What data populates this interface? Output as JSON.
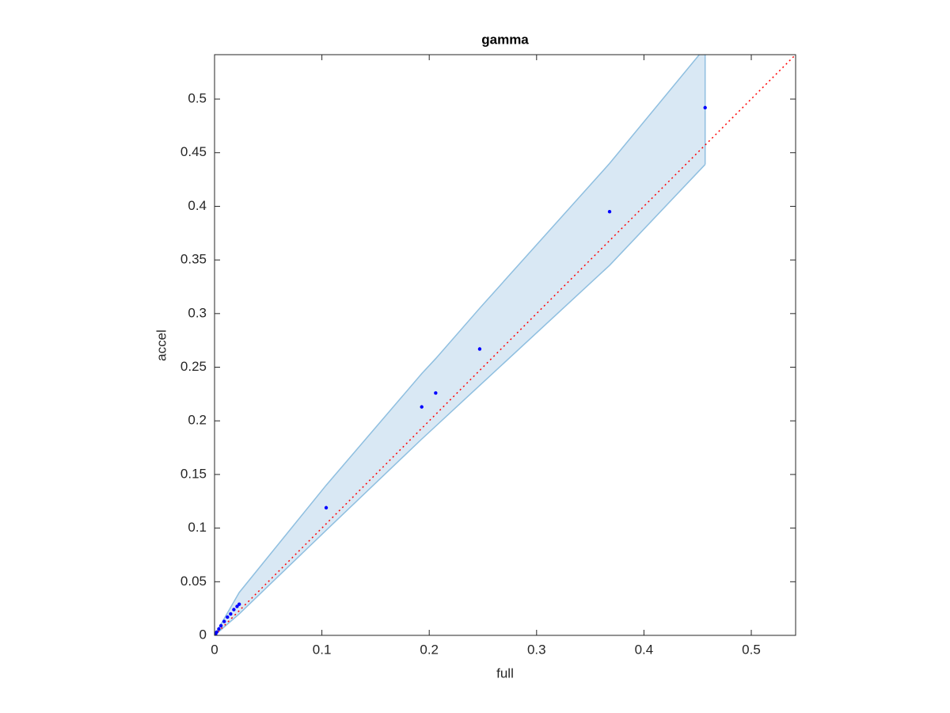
{
  "chart_data": {
    "type": "scatter",
    "title": "gamma",
    "x_label": "full",
    "y_label": "accel",
    "xlim": [
      0,
      0.5413
    ],
    "ylim": [
      0,
      0.5414
    ],
    "xticks": [
      0,
      0.1,
      0.2,
      0.3,
      0.4,
      0.5
    ],
    "yticks": [
      0,
      0.05,
      0.1,
      0.15,
      0.2,
      0.25,
      0.3,
      0.35,
      0.4,
      0.45,
      0.5
    ],
    "grid": false,
    "series": [
      {
        "color": "#0000ff",
        "x": [
          0.001,
          0.002,
          0.004,
          0.006,
          0.009,
          0.012,
          0.015,
          0.018,
          0.021,
          0.023,
          0.104,
          0.193,
          0.206,
          0.247,
          0.368,
          0.457
        ],
        "values": [
          0.001,
          0.003,
          0.006,
          0.009,
          0.013,
          0.017,
          0.02,
          0.024,
          0.027,
          0.029,
          0.119,
          0.213,
          0.226,
          0.267,
          0.395,
          0.492
        ]
      }
    ],
    "band": {
      "color": "#d9e8f4",
      "edge_color": "#8fbfe0",
      "x": [
        0,
        0.023,
        0.104,
        0.193,
        0.206,
        0.247,
        0.368,
        0.457
      ],
      "upper": [
        0,
        0.04,
        0.14,
        0.244,
        0.258,
        0.305,
        0.44,
        0.548
      ],
      "lower": [
        0,
        0.02,
        0.098,
        0.183,
        0.195,
        0.233,
        0.345,
        0.439
      ]
    },
    "reference_line": {
      "color": "#ff0000",
      "x": [
        0,
        0.5413
      ],
      "y": [
        0,
        0.5414
      ]
    }
  }
}
